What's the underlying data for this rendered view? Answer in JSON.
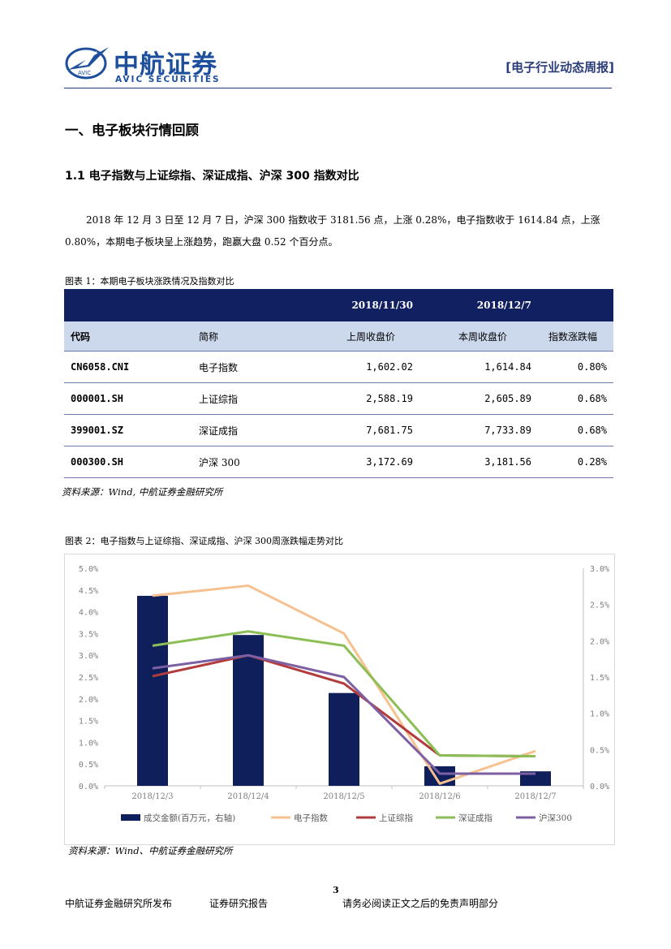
{
  "header": {
    "logo_cn": "中航证券",
    "logo_en": "AVIC SECURITIES",
    "logo_badge": "AVIC",
    "report_type": "[电子行业动态周报]"
  },
  "section": {
    "h1": "一、电子板块行情回顾",
    "h2": "1.1 电子指数与上证综指、深证成指、沪深 300 指数对比",
    "paragraph": "2018 年 12 月 3 日至 12 月 7 日，沪深 300 指数收于 3181.56 点，上涨 0.28%，电子指数收于 1614.84 点，上涨 0.80%，本期电子板块呈上涨趋势，跑赢大盘 0.52 个百分点。"
  },
  "table1": {
    "caption": "图表 1：本期电子板块涨跌情况及指数对比",
    "band": [
      "",
      "",
      "2018/11/30",
      "2018/12/7",
      ""
    ],
    "headers": [
      "代码",
      "简称",
      "上周收盘价",
      "本周收盘价",
      "指数涨跌幅"
    ],
    "rows": [
      {
        "code": "CN6058.CNI",
        "name": "电子指数",
        "prev": "1,602.02",
        "curr": "1,614.84",
        "chg": "0.80%"
      },
      {
        "code": "000001.SH",
        "name": "上证综指",
        "prev": "2,588.19",
        "curr": "2,605.89",
        "chg": "0.68%"
      },
      {
        "code": "399001.SZ",
        "name": "深证成指",
        "prev": "7,681.75",
        "curr": "7,733.89",
        "chg": "0.68%"
      },
      {
        "code": "000300.SH",
        "name": "沪深 300",
        "prev": "3,172.69",
        "curr": "3,181.56",
        "chg": "0.28%"
      }
    ],
    "source": "资料来源：Wind, 中航证券金融研究所"
  },
  "figure2": {
    "caption": "图表 2：电子指数与上证综指、深证成指、沪深 300周涨跌幅走势对比",
    "source": "资料来源：Wind、中航证券金融研究所"
  },
  "chart_data": {
    "type": "bar",
    "categories": [
      "2018/12/3",
      "2018/12/4",
      "2018/12/5",
      "2018/12/6",
      "2018/12/7"
    ],
    "left_ticks": [
      "0.0%",
      "0.5%",
      "1.0%",
      "1.5%",
      "2.0%",
      "2.5%",
      "3.0%",
      "3.5%",
      "4.0%",
      "4.5%",
      "5.0%"
    ],
    "right_ticks": [
      "0.0%",
      "0.5%",
      "1.0%",
      "1.5%",
      "2.0%",
      "2.5%",
      "3.0%"
    ],
    "ylim_left": [
      0,
      5
    ],
    "ylim_right": [
      0,
      3
    ],
    "legend_position": "bottom",
    "grid": false,
    "series": [
      {
        "name": "成交金额(百万元，右轴)",
        "kind": "bar",
        "axis": "right",
        "color": "#0f1f5c",
        "values": [
          2.62,
          2.08,
          1.28,
          0.27,
          0.2
        ]
      },
      {
        "name": "电子指数",
        "kind": "line",
        "axis": "left",
        "color": "#f6c18e",
        "values": [
          4.37,
          4.6,
          3.5,
          0.05,
          0.8
        ]
      },
      {
        "name": "上证综指",
        "kind": "line",
        "axis": "left",
        "color": "#b23b3b",
        "values": [
          2.52,
          3.0,
          2.35,
          0.7,
          0.68
        ]
      },
      {
        "name": "深证成指",
        "kind": "line",
        "axis": "left",
        "color": "#8bbf56",
        "values": [
          3.22,
          3.55,
          3.22,
          0.7,
          0.68
        ]
      },
      {
        "name": "沪深300",
        "kind": "line",
        "axis": "left",
        "color": "#7d5fa3",
        "values": [
          2.7,
          3.0,
          2.5,
          0.28,
          0.28
        ]
      }
    ]
  },
  "footer": {
    "page": "3",
    "left": "中航证券金融研究所发布",
    "middle": "证券研究报告",
    "right": "请务必阅读正文之后的免责声明部分"
  }
}
